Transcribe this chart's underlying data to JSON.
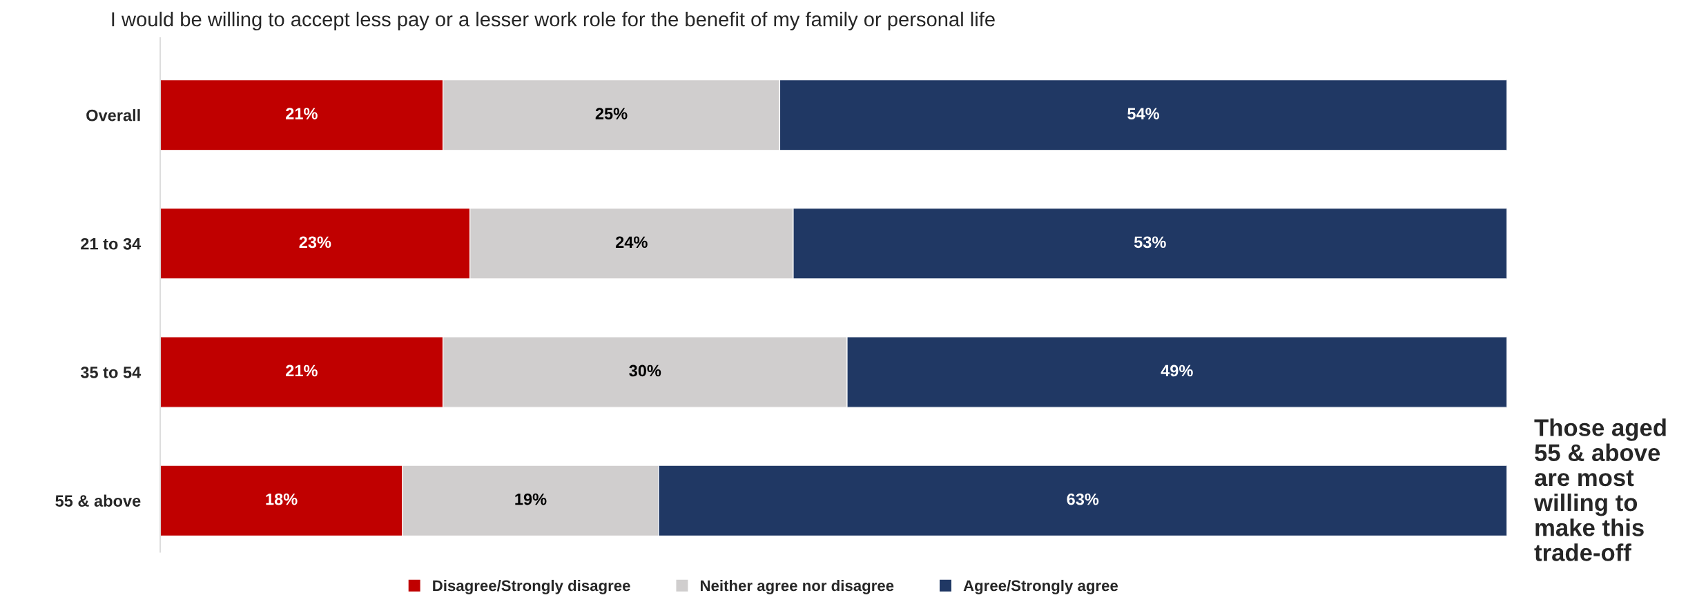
{
  "chart_data": {
    "type": "bar",
    "orientation": "horizontal",
    "stacked": true,
    "title": "I would be willing to accept less pay or a lesser work role for the benefit of my family or personal life",
    "categories": [
      "Overall",
      "21 to 34",
      "35 to 54",
      "55 & above"
    ],
    "xlim": [
      0,
      100
    ],
    "tick_labels": "y",
    "grid": false,
    "legend": "bottom",
    "series": [
      {
        "name": "Disagree/Strongly disagree",
        "color": "#c00000",
        "values": [
          21,
          23,
          21,
          18
        ],
        "value_labels": [
          "21%",
          "23%",
          "21%",
          "18%"
        ]
      },
      {
        "name": "Neither agree nor disagree",
        "color": "#d0cece",
        "values": [
          25,
          24,
          30,
          19
        ],
        "value_labels": [
          "25%",
          "24%",
          "30%",
          "19%"
        ]
      },
      {
        "name": "Agree/Strongly agree",
        "color": "#203864",
        "values": [
          54,
          53,
          49,
          63
        ],
        "value_labels": [
          "54%",
          "53%",
          "49%",
          "63%"
        ]
      }
    ],
    "annotations": [
      "Those aged 55 & above are most willing to make this trade-off"
    ]
  }
}
